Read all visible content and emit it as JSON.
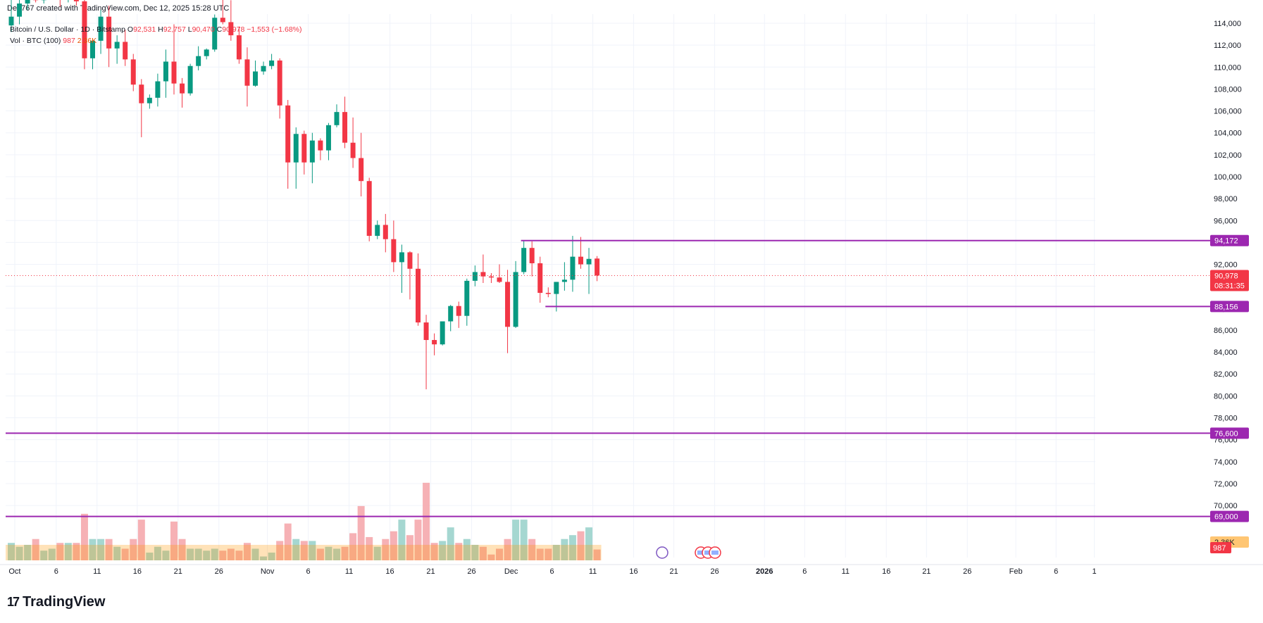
{
  "header": {
    "credit": "Den767 created with TradingView.com, Dec 12, 2025 15:28 UTC"
  },
  "legend": {
    "symbol": "Bitcoin / U.S. Dollar · 1D · Bitstamp",
    "o_label": "O",
    "o_value": "92,531",
    "h_label": "H",
    "h_value": "92,757",
    "l_label": "L",
    "l_value": "90,470",
    "c_label": "C",
    "c_value": "90,978",
    "change": "−1,553 (−1.68%)",
    "vol_label": "Vol · BTC (100)",
    "vol_value": "987",
    "vol_ma": "2.36K"
  },
  "footer": {
    "brand": "TradingView",
    "brand_mark": "17"
  },
  "colors": {
    "up": "#089981",
    "down": "#f23645",
    "vol_up": "#9bd3cc",
    "vol_down": "#f5a9ad",
    "level": "#9c27b0",
    "grid": "#f0f3fa",
    "price_line": "#f23645"
  },
  "chart_data": {
    "type": "candlestick",
    "title": "Bitcoin / U.S. Dollar · 1D · Bitstamp",
    "y_axis": {
      "min": 67000,
      "max": 114500,
      "ticks": [
        114000,
        112000,
        110000,
        108000,
        106000,
        104000,
        102000,
        100000,
        98000,
        96000,
        94000,
        92000,
        90000,
        88000,
        86000,
        84000,
        82000,
        80000,
        78000,
        76000,
        74000,
        72000,
        70000
      ],
      "tick_labels": [
        "114,000",
        "112,000",
        "110,000",
        "108,000",
        "106,000",
        "104,000",
        "102,000",
        "100,000",
        "98,000",
        "96,000",
        "94,000",
        "92,000",
        "90,000",
        "88,000",
        "86,000",
        "84,000",
        "82,000",
        "80,000",
        "78,000",
        "76,000",
        "74,000",
        "72,000",
        "70,000"
      ]
    },
    "x_axis": {
      "labels": [
        "Oct",
        "6",
        "11",
        "16",
        "21",
        "26",
        "Nov",
        "6",
        "11",
        "16",
        "21",
        "26",
        "Dec",
        "6",
        "11",
        "16",
        "21",
        "26",
        "2026",
        "6",
        "11",
        "16",
        "21",
        "26",
        "Feb",
        "6",
        "1"
      ]
    },
    "candles": [
      {
        "date": "Oct 1",
        "o": 113800,
        "h": 116500,
        "l": 113200,
        "c": 114600
      },
      {
        "date": "Oct 2",
        "o": 114600,
        "h": 116800,
        "l": 113900,
        "c": 115800
      },
      {
        "date": "Oct 3",
        "o": 115800,
        "h": 117000,
        "l": 115200,
        "c": 116600
      },
      {
        "date": "Oct 4",
        "o": 116600,
        "h": 117200,
        "l": 115900,
        "c": 116100
      },
      {
        "date": "Oct 5",
        "o": 116100,
        "h": 117500,
        "l": 115800,
        "c": 117300
      },
      {
        "date": "Oct 6",
        "o": 117300,
        "h": 119000,
        "l": 116800,
        "c": 117600
      },
      {
        "date": "Oct 7",
        "o": 117600,
        "h": 118200,
        "l": 115500,
        "c": 116200
      },
      {
        "date": "Oct 8",
        "o": 116200,
        "h": 117800,
        "l": 115900,
        "c": 117400
      },
      {
        "date": "Oct 9",
        "o": 117400,
        "h": 117700,
        "l": 115600,
        "c": 116000
      },
      {
        "date": "Oct 10",
        "o": 116000,
        "h": 116300,
        "l": 109800,
        "c": 110800
      },
      {
        "date": "Oct 11",
        "o": 110800,
        "h": 112500,
        "l": 109800,
        "c": 112400
      },
      {
        "date": "Oct 12",
        "o": 112400,
        "h": 115200,
        "l": 111200,
        "c": 114600
      },
      {
        "date": "Oct 13",
        "o": 114600,
        "h": 115600,
        "l": 110000,
        "c": 111700
      },
      {
        "date": "Oct 14",
        "o": 111700,
        "h": 112900,
        "l": 110300,
        "c": 112300
      },
      {
        "date": "Oct 15",
        "o": 112300,
        "h": 113400,
        "l": 110100,
        "c": 110700
      },
      {
        "date": "Oct 16",
        "o": 110700,
        "h": 111200,
        "l": 107800,
        "c": 108400
      },
      {
        "date": "Oct 17",
        "o": 108400,
        "h": 108900,
        "l": 103600,
        "c": 106700
      },
      {
        "date": "Oct 18",
        "o": 106700,
        "h": 107500,
        "l": 106200,
        "c": 107200
      },
      {
        "date": "Oct 19",
        "o": 107200,
        "h": 109400,
        "l": 106400,
        "c": 108700
      },
      {
        "date": "Oct 20",
        "o": 108700,
        "h": 111600,
        "l": 107200,
        "c": 110500
      },
      {
        "date": "Oct 21",
        "o": 110500,
        "h": 113900,
        "l": 107500,
        "c": 108500
      },
      {
        "date": "Oct 22",
        "o": 108500,
        "h": 109000,
        "l": 106300,
        "c": 107600
      },
      {
        "date": "Oct 23",
        "o": 107600,
        "h": 110300,
        "l": 107400,
        "c": 110100
      },
      {
        "date": "Oct 24",
        "o": 110100,
        "h": 111900,
        "l": 109700,
        "c": 111000
      },
      {
        "date": "Oct 25",
        "o": 111000,
        "h": 111700,
        "l": 110700,
        "c": 111600
      },
      {
        "date": "Oct 26",
        "o": 111600,
        "h": 114800,
        "l": 111400,
        "c": 114500
      },
      {
        "date": "Oct 27",
        "o": 114500,
        "h": 116400,
        "l": 113900,
        "c": 114100
      },
      {
        "date": "Oct 28",
        "o": 114100,
        "h": 116100,
        "l": 112400,
        "c": 112900
      },
      {
        "date": "Oct 29",
        "o": 112900,
        "h": 113700,
        "l": 110300,
        "c": 110700
      },
      {
        "date": "Oct 30",
        "o": 110700,
        "h": 111800,
        "l": 106400,
        "c": 108300
      },
      {
        "date": "Oct 31",
        "o": 108300,
        "h": 110600,
        "l": 108200,
        "c": 109600
      },
      {
        "date": "Nov 1",
        "o": 109600,
        "h": 110500,
        "l": 109300,
        "c": 110100
      },
      {
        "date": "Nov 2",
        "o": 110100,
        "h": 111200,
        "l": 109800,
        "c": 110600
      },
      {
        "date": "Nov 3",
        "o": 110600,
        "h": 110800,
        "l": 105300,
        "c": 106500
      },
      {
        "date": "Nov 4",
        "o": 106500,
        "h": 107000,
        "l": 98900,
        "c": 101300
      },
      {
        "date": "Nov 5",
        "o": 101300,
        "h": 104500,
        "l": 98900,
        "c": 103900
      },
      {
        "date": "Nov 6",
        "o": 103900,
        "h": 104200,
        "l": 100200,
        "c": 101300
      },
      {
        "date": "Nov 7",
        "o": 101300,
        "h": 104000,
        "l": 99400,
        "c": 103300
      },
      {
        "date": "Nov 8",
        "o": 103300,
        "h": 103500,
        "l": 101500,
        "c": 102400
      },
      {
        "date": "Nov 9",
        "o": 102400,
        "h": 104900,
        "l": 101500,
        "c": 104700
      },
      {
        "date": "Nov 10",
        "o": 104700,
        "h": 106600,
        "l": 104500,
        "c": 105900
      },
      {
        "date": "Nov 11",
        "o": 105900,
        "h": 107300,
        "l": 102600,
        "c": 103100
      },
      {
        "date": "Nov 12",
        "o": 103100,
        "h": 105400,
        "l": 100800,
        "c": 101700
      },
      {
        "date": "Nov 13",
        "o": 101700,
        "h": 104000,
        "l": 98200,
        "c": 99600
      },
      {
        "date": "Nov 14",
        "o": 99600,
        "h": 99900,
        "l": 94100,
        "c": 94600
      },
      {
        "date": "Nov 15",
        "o": 94600,
        "h": 96000,
        "l": 94300,
        "c": 95600
      },
      {
        "date": "Nov 16",
        "o": 95600,
        "h": 96600,
        "l": 93100,
        "c": 94300
      },
      {
        "date": "Nov 17",
        "o": 94300,
        "h": 96000,
        "l": 91300,
        "c": 92200
      },
      {
        "date": "Nov 18",
        "o": 92200,
        "h": 93800,
        "l": 89400,
        "c": 93100
      },
      {
        "date": "Nov 19",
        "o": 93100,
        "h": 93200,
        "l": 88800,
        "c": 91600
      },
      {
        "date": "Nov 20",
        "o": 91600,
        "h": 93000,
        "l": 86400,
        "c": 86700
      },
      {
        "date": "Nov 21",
        "o": 86700,
        "h": 87400,
        "l": 80600,
        "c": 85100
      },
      {
        "date": "Nov 22",
        "o": 85100,
        "h": 85700,
        "l": 83700,
        "c": 84700
      },
      {
        "date": "Nov 23",
        "o": 84700,
        "h": 86800,
        "l": 84600,
        "c": 86800
      },
      {
        "date": "Nov 24",
        "o": 86800,
        "h": 88300,
        "l": 85900,
        "c": 88200
      },
      {
        "date": "Nov 25",
        "o": 88200,
        "h": 88600,
        "l": 86200,
        "c": 87300
      },
      {
        "date": "Nov 26",
        "o": 87300,
        "h": 90700,
        "l": 86400,
        "c": 90500
      },
      {
        "date": "Nov 27",
        "o": 90500,
        "h": 91900,
        "l": 90000,
        "c": 91300
      },
      {
        "date": "Nov 28",
        "o": 91300,
        "h": 92900,
        "l": 90300,
        "c": 90900
      },
      {
        "date": "Nov 29",
        "o": 90900,
        "h": 91200,
        "l": 90300,
        "c": 90800
      },
      {
        "date": "Nov 30",
        "o": 90800,
        "h": 92000,
        "l": 90300,
        "c": 90400
      },
      {
        "date": "Dec 1",
        "o": 90400,
        "h": 91500,
        "l": 83900,
        "c": 86300
      },
      {
        "date": "Dec 2",
        "o": 86300,
        "h": 92300,
        "l": 86200,
        "c": 91300
      },
      {
        "date": "Dec 3",
        "o": 91300,
        "h": 94200,
        "l": 91100,
        "c": 93500
      },
      {
        "date": "Dec 4",
        "o": 93500,
        "h": 94100,
        "l": 90900,
        "c": 92100
      },
      {
        "date": "Dec 5",
        "o": 92100,
        "h": 92700,
        "l": 88500,
        "c": 89400
      },
      {
        "date": "Dec 6",
        "o": 89400,
        "h": 89900,
        "l": 89000,
        "c": 89300
      },
      {
        "date": "Dec 7",
        "o": 89300,
        "h": 90400,
        "l": 87700,
        "c": 90400
      },
      {
        "date": "Dec 8",
        "o": 90400,
        "h": 92200,
        "l": 89600,
        "c": 90600
      },
      {
        "date": "Dec 9",
        "o": 90600,
        "h": 94600,
        "l": 89500,
        "c": 92700
      },
      {
        "date": "Dec 10",
        "o": 92700,
        "h": 94500,
        "l": 91600,
        "c": 92000
      },
      {
        "date": "Dec 11",
        "o": 92000,
        "h": 93500,
        "l": 89300,
        "c": 92500
      },
      {
        "date": "Dec 12",
        "o": 92531,
        "h": 92757,
        "l": 90470,
        "c": 90978
      }
    ],
    "volume": [
      0.45,
      0.35,
      0.4,
      0.55,
      0.25,
      0.3,
      0.45,
      0.45,
      0.45,
      1.2,
      0.55,
      0.55,
      0.55,
      0.35,
      0.3,
      0.55,
      1.05,
      0.2,
      0.35,
      0.25,
      1.0,
      0.55,
      0.3,
      0.3,
      0.25,
      0.3,
      0.25,
      0.3,
      0.25,
      0.45,
      0.3,
      0.1,
      0.2,
      0.5,
      0.95,
      0.55,
      0.5,
      0.5,
      0.3,
      0.35,
      0.3,
      0.35,
      0.7,
      1.4,
      0.6,
      0.35,
      0.55,
      0.75,
      1.05,
      0.65,
      1.05,
      2.0,
      0.45,
      0.5,
      0.85,
      0.45,
      0.55,
      0.4,
      0.35,
      0.15,
      0.3,
      0.55,
      1.05,
      1.05,
      0.55,
      0.3,
      0.3,
      0.4,
      0.55,
      0.65,
      0.75,
      0.85,
      0.28
    ],
    "vol_ma_line": 0.4,
    "levels": [
      {
        "value": 94172,
        "label": "94,172",
        "start_index": 63
      },
      {
        "value": 88156,
        "label": "88,156",
        "start_index": 66
      },
      {
        "value": 76600,
        "label": "76,600",
        "start_index": 0
      },
      {
        "value": 69000,
        "label": "69,000",
        "start_index": 0
      }
    ],
    "last_price": {
      "label": "90,978",
      "countdown": "08:31:35"
    },
    "vol_tags": {
      "ma": "2.36K",
      "last": "987"
    }
  }
}
